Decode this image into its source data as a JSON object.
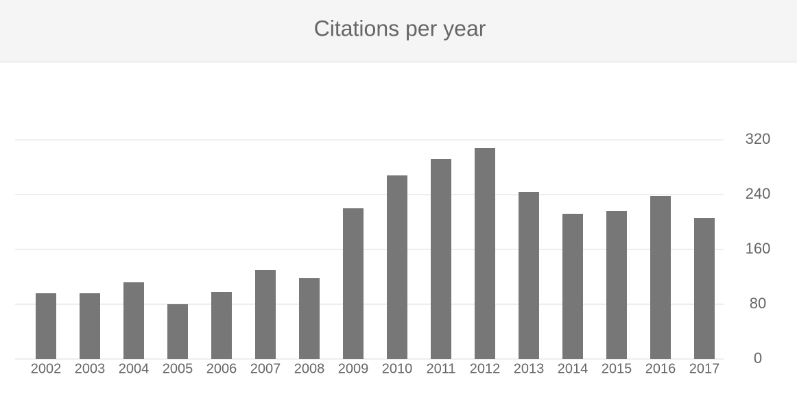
{
  "chart_data": {
    "type": "bar",
    "title": "Citations per year",
    "categories": [
      "2002",
      "2003",
      "2004",
      "2005",
      "2006",
      "2007",
      "2008",
      "2009",
      "2010",
      "2011",
      "2012",
      "2013",
      "2014",
      "2015",
      "2016",
      "2017"
    ],
    "values": [
      96,
      96,
      112,
      80,
      98,
      130,
      118,
      220,
      268,
      292,
      308,
      244,
      212,
      216,
      238,
      206
    ],
    "color": "#777777",
    "ylim": [
      0,
      320
    ],
    "yticks": [
      0,
      80,
      160,
      240,
      320
    ],
    "grid": true
  }
}
